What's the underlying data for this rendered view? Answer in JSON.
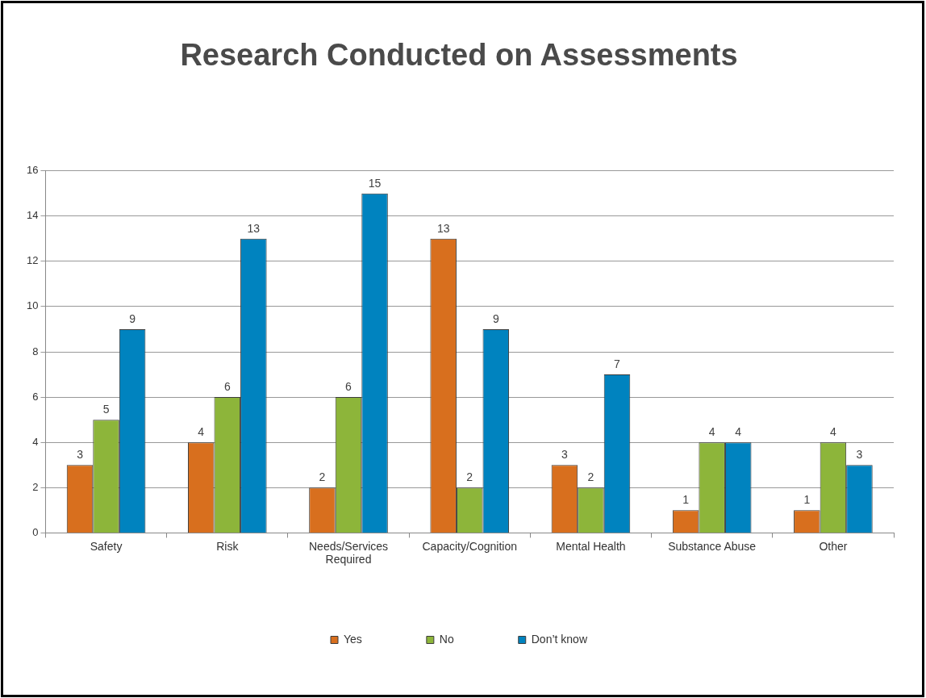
{
  "chart_data": {
    "type": "bar",
    "title": "Research Conducted on Assessments",
    "categories": [
      "Safety",
      "Risk",
      "Needs/Services Required",
      "Capacity/Cognition",
      "Mental Health",
      "Substance Abuse",
      "Other"
    ],
    "series": [
      {
        "name": "Yes",
        "color": "#d86f1e",
        "values": [
          3,
          4,
          2,
          13,
          3,
          1,
          1
        ]
      },
      {
        "name": "No",
        "color": "#8db53a",
        "values": [
          5,
          6,
          6,
          2,
          2,
          4,
          4
        ]
      },
      {
        "name": "Don’t know",
        "color": "#0083bf",
        "values": [
          9,
          13,
          15,
          9,
          7,
          4,
          3
        ]
      }
    ],
    "ylim": [
      0,
      16
    ],
    "yticks": [
      0,
      2,
      4,
      6,
      8,
      10,
      12,
      14,
      16
    ],
    "grid": "y",
    "legend": "bottom",
    "data_labels": true
  }
}
